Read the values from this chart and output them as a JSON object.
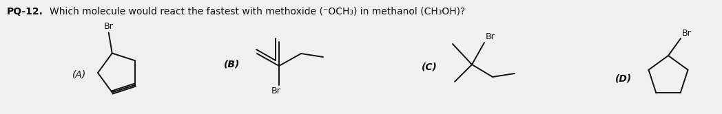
{
  "bg_color": "#f0f0f0",
  "text_color": "#111111",
  "label_A": "(A)",
  "label_B": "(B)",
  "label_C": "(C)",
  "label_D": "(D)",
  "figsize": [
    10.48,
    1.66
  ],
  "dpi": 100
}
